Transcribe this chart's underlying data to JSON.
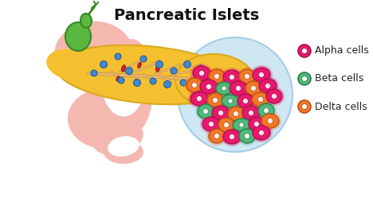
{
  "title": "Pancreatic Islets",
  "title_fontsize": 14,
  "title_fontweight": "bold",
  "background_color": "#ffffff",
  "legend_items": [
    {
      "label": "Alpha cells",
      "face_color": "#e8186d",
      "edge_color": "#b01050"
    },
    {
      "label": "Beta cells",
      "face_color": "#50b878",
      "edge_color": "#2a8050"
    },
    {
      "label": "Delta cells",
      "face_color": "#f07828",
      "edge_color": "#c05010"
    }
  ],
  "legend_fontsize": 9,
  "stomach_color": "#f5b8b0",
  "gallbladder_color": "#5ab840",
  "gallbladder_edge": "#3a8820",
  "pancreas_color": "#f5c030",
  "pancreas_edge": "#d8a820",
  "islet_bg_color": "#c0e0f0",
  "islet_bg_edge": "#90c0e0",
  "alpha_color_face": "#e8186d",
  "alpha_color_edge": "#b01050",
  "beta_color_face": "#50b878",
  "beta_color_edge": "#2a8050",
  "delta_color_face": "#f07828",
  "delta_color_edge": "#c05010",
  "blue_dot_color": "#4488cc",
  "blue_dot_edge": "#2060a0",
  "duct_color": "#e8b870",
  "duct_edge": "#c89040",
  "vessel_color": "#cc3020",
  "vessel_red": "#cc2020"
}
